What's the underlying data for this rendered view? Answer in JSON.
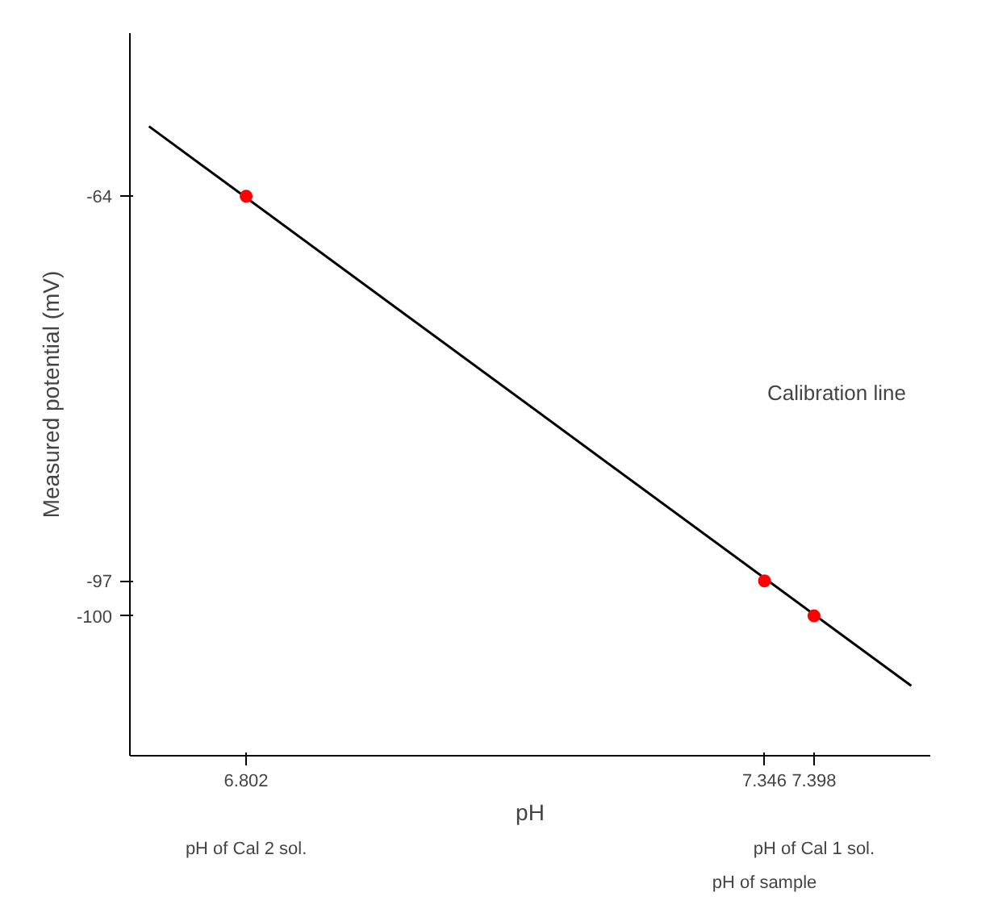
{
  "chart_data": {
    "type": "line",
    "xlabel": "pH",
    "ylabel": "Measured potential (mV)",
    "x": [
      6.802,
      7.346,
      7.398
    ],
    "series": [
      {
        "x": [
          6.7,
          7.5
        ],
        "values": [
          -58,
          -106
        ],
        "color": "#000000"
      },
      {
        "type": "scatter",
        "values": [
          -64,
          -97,
          -100
        ],
        "color": "#ff0000",
        "marker": "circle"
      }
    ],
    "xlim": [
      6.68,
      7.52
    ],
    "ylim": [
      -112,
      -50
    ],
    "xticks": [
      6.802,
      7.346,
      7.398
    ],
    "yticks": [
      -64,
      -97,
      -100
    ],
    "grid": false,
    "annotations": [
      "Calibration line",
      "pH of Cal 2 sol.",
      "pH of sample",
      "pH of Cal 1 sol."
    ]
  }
}
